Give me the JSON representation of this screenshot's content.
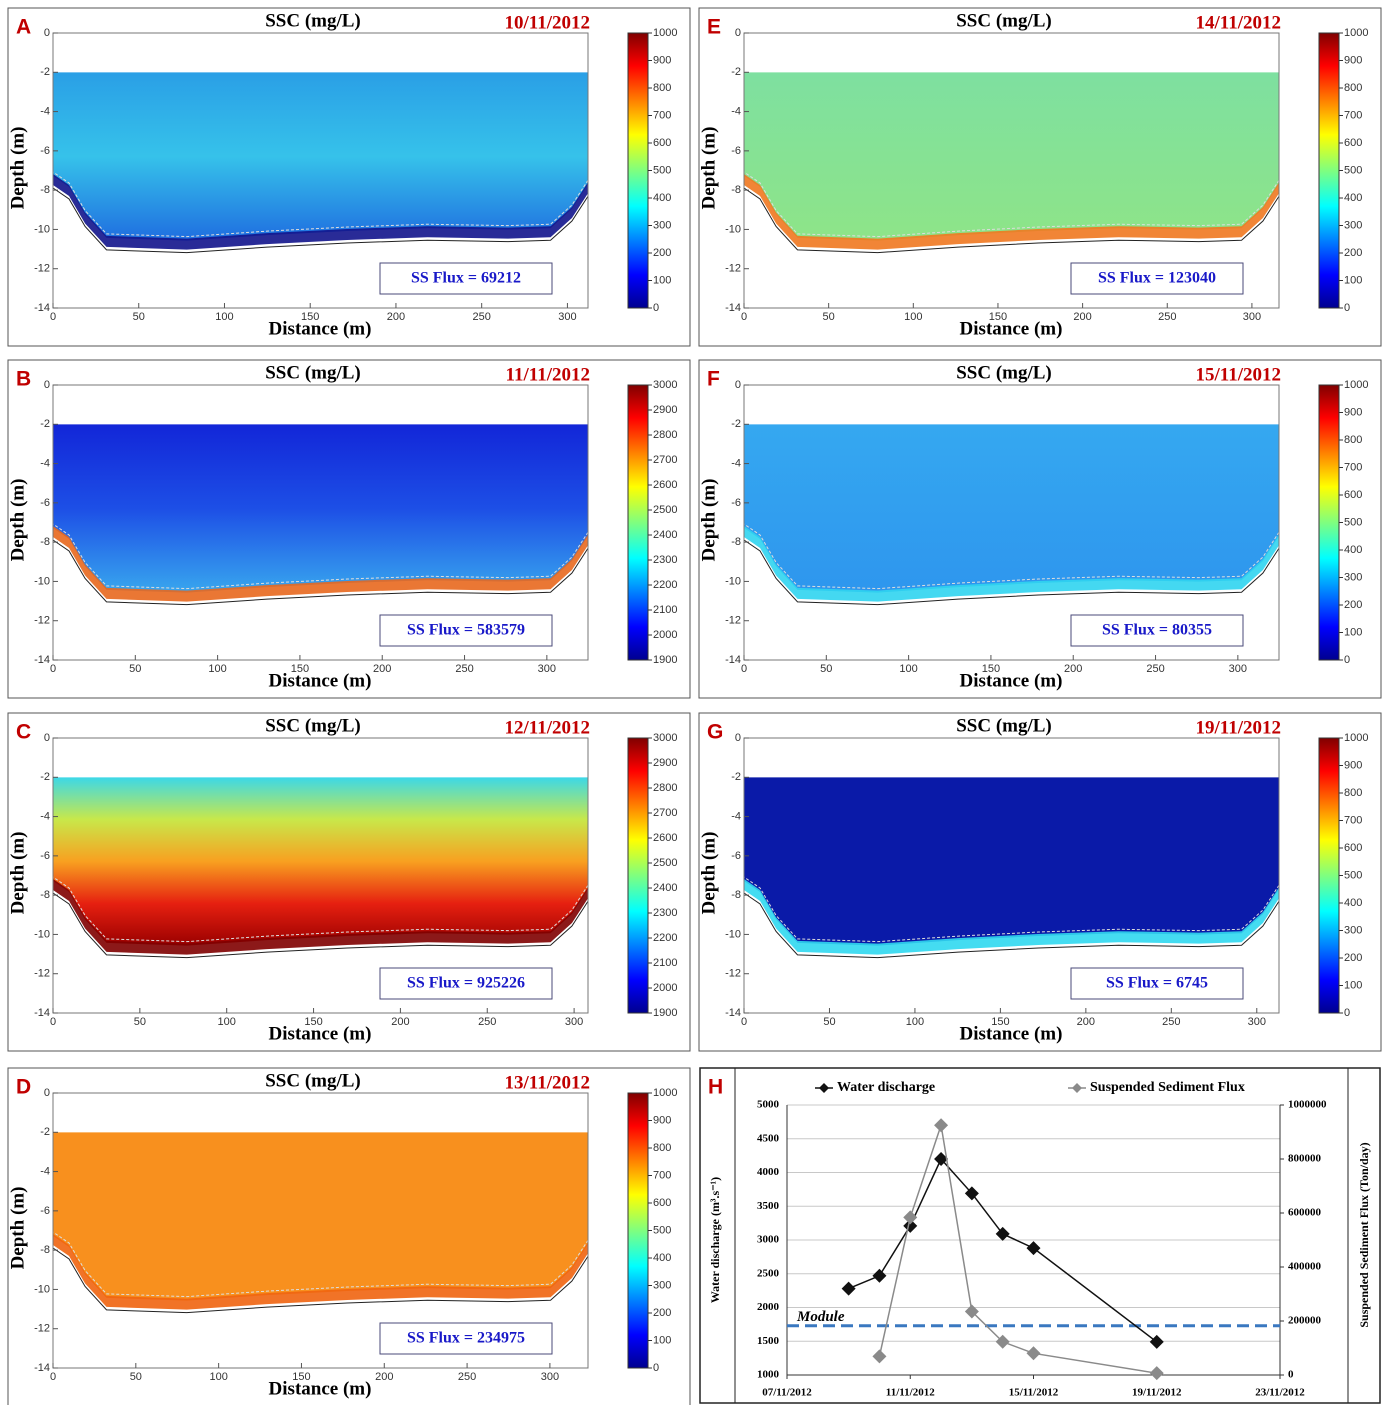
{
  "chart_data": [
    {
      "type": "heatmap",
      "panel": "A",
      "title": "SSC (mg/L)",
      "date": "10/11/2012",
      "xlabel": "Distance (m)",
      "ylabel": "Depth (m)",
      "xlim": [
        0,
        312
      ],
      "xticks": [
        0,
        50,
        100,
        150,
        200,
        250,
        300
      ],
      "ylim": [
        -14,
        0
      ],
      "yticks": [
        -14,
        -12,
        -10,
        -8,
        -6,
        -4,
        -2,
        0
      ],
      "clim": [
        0,
        1000
      ],
      "cticks": [
        0,
        100,
        200,
        300,
        400,
        500,
        600,
        700,
        800,
        900,
        1000
      ],
      "annotation": "SS Flux = 69212",
      "field_colors": [
        "#2a9fe6",
        "#36c2ea",
        "#1f6ee0"
      ],
      "bed_color": "#12148c"
    },
    {
      "type": "heatmap",
      "panel": "B",
      "title": "SSC (mg/L)",
      "date": "11/11/2012",
      "xlabel": "Distance (m)",
      "ylabel": "Depth (m)",
      "xlim": [
        0,
        325
      ],
      "xticks": [
        0,
        50,
        100,
        150,
        200,
        250,
        300
      ],
      "ylim": [
        -14,
        0
      ],
      "yticks": [
        -14,
        -12,
        -10,
        -8,
        -6,
        -4,
        -2,
        0
      ],
      "clim": [
        1900,
        3000
      ],
      "cticks": [
        1900,
        2000,
        2100,
        2200,
        2300,
        2400,
        2500,
        2600,
        2700,
        2800,
        2900,
        3000
      ],
      "annotation": "SS Flux = 583579",
      "field_colors": [
        "#1226d8",
        "#1d4fe6",
        "#38a6ee"
      ],
      "bed_color": "#e8681e"
    },
    {
      "type": "heatmap",
      "panel": "C",
      "title": "SSC (mg/L)",
      "date": "12/11/2012",
      "xlabel": "Distance (m)",
      "ylabel": "Depth (m)",
      "xlim": [
        0,
        308
      ],
      "xticks": [
        0,
        50,
        100,
        150,
        200,
        250,
        300
      ],
      "ylim": [
        -14,
        0
      ],
      "yticks": [
        -14,
        -12,
        -10,
        -8,
        -6,
        -4,
        -2,
        0
      ],
      "clim": [
        1900,
        3000
      ],
      "cticks": [
        1900,
        2000,
        2100,
        2200,
        2300,
        2400,
        2500,
        2600,
        2700,
        2800,
        2900,
        3000
      ],
      "annotation": "SS Flux = 925226",
      "field_colors": [
        "#3cd8e8",
        "#c8e84a",
        "#f8a020",
        "#e62010",
        "#9a0000"
      ],
      "bed_color": "#800000"
    },
    {
      "type": "heatmap",
      "panel": "D",
      "title": "SSC (mg/L)",
      "date": "13/11/2012",
      "xlabel": "Distance (m)",
      "ylabel": "Depth (m)",
      "xlim": [
        0,
        323
      ],
      "xticks": [
        0,
        50,
        100,
        150,
        200,
        250,
        300
      ],
      "ylim": [
        -14,
        0
      ],
      "yticks": [
        -14,
        -12,
        -10,
        -8,
        -6,
        -4,
        -2,
        0
      ],
      "clim": [
        0,
        1000
      ],
      "cticks": [
        0,
        100,
        200,
        300,
        400,
        500,
        600,
        700,
        800,
        900,
        1000
      ],
      "annotation": "SS Flux = 234975",
      "field_colors": [
        "#f8901e"
      ],
      "bed_color": "#f06410"
    },
    {
      "type": "heatmap",
      "panel": "E",
      "title": "SSC (mg/L)",
      "date": "14/11/2012",
      "xlabel": "Distance (m)",
      "ylabel": "Depth (m)",
      "xlim": [
        0,
        316
      ],
      "xticks": [
        0,
        50,
        100,
        150,
        200,
        250,
        300
      ],
      "ylim": [
        -14,
        0
      ],
      "yticks": [
        -14,
        -12,
        -10,
        -8,
        -6,
        -4,
        -2,
        0
      ],
      "clim": [
        0,
        1000
      ],
      "cticks": [
        0,
        100,
        200,
        300,
        400,
        500,
        600,
        700,
        800,
        900,
        1000
      ],
      "annotation": "SS Flux = 123040",
      "field_colors": [
        "#7ee0a0",
        "#8ee488"
      ],
      "bed_color": "#f07820"
    },
    {
      "type": "heatmap",
      "panel": "F",
      "title": "SSC (mg/L)",
      "date": "15/11/2012",
      "xlabel": "Distance (m)",
      "ylabel": "Depth (m)",
      "xlim": [
        0,
        325
      ],
      "xticks": [
        0,
        50,
        100,
        150,
        200,
        250,
        300
      ],
      "ylim": [
        -14,
        0
      ],
      "yticks": [
        -14,
        -12,
        -10,
        -8,
        -6,
        -4,
        -2,
        0
      ],
      "clim": [
        0,
        1000
      ],
      "cticks": [
        0,
        100,
        200,
        300,
        400,
        500,
        600,
        700,
        800,
        900,
        1000
      ],
      "annotation": "SS Flux = 80355",
      "field_colors": [
        "#35a8f0",
        "#2e96ee"
      ],
      "bed_color": "#30d4f0"
    },
    {
      "type": "heatmap",
      "panel": "G",
      "title": "SSC (mg/L)",
      "date": "19/11/2012",
      "xlabel": "Distance (m)",
      "ylabel": "Depth (m)",
      "xlim": [
        0,
        313
      ],
      "xticks": [
        0,
        50,
        100,
        150,
        200,
        250,
        300
      ],
      "ylim": [
        -14,
        0
      ],
      "yticks": [
        -14,
        -12,
        -10,
        -8,
        -6,
        -4,
        -2,
        0
      ],
      "clim": [
        0,
        1000
      ],
      "cticks": [
        0,
        100,
        200,
        300,
        400,
        500,
        600,
        700,
        800,
        900,
        1000
      ],
      "annotation": "SS Flux = 6745",
      "field_colors": [
        "#0a1aa8"
      ],
      "bed_color": "#30d8f0"
    },
    {
      "type": "line",
      "panel": "H",
      "ylabel": "Water discharge (m³.s⁻¹)",
      "y2label": "Suspended Sediment Flux (Ton/day)",
      "xlim": [
        "07/11/2012",
        "23/11/2012"
      ],
      "xticks": [
        "07/11/2012",
        "11/11/2012",
        "15/11/2012",
        "19/11/2012",
        "23/11/2012"
      ],
      "ylim": [
        1000,
        5000
      ],
      "yticks": [
        1000,
        1500,
        2000,
        2500,
        3000,
        3500,
        4000,
        4500,
        5000
      ],
      "y2lim": [
        0,
        1000000
      ],
      "y2ticks": [
        0,
        200000,
        400000,
        600000,
        800000,
        1000000
      ],
      "grid": true,
      "series": [
        {
          "name": "Water discharge",
          "color": "#111111",
          "axis": "y",
          "x": [
            "09/11/2012",
            "10/11/2012",
            "11/11/2012",
            "12/11/2012",
            "13/11/2012",
            "14/11/2012",
            "15/11/2012",
            "19/11/2012"
          ],
          "values": [
            2280,
            2470,
            3210,
            4200,
            3690,
            3090,
            2880,
            1490
          ]
        },
        {
          "name": "Suspended Sediment Flux",
          "color": "#8a8a8a",
          "axis": "y2",
          "x": [
            "10/11/2012",
            "11/11/2012",
            "12/11/2012",
            "13/11/2012",
            "14/11/2012",
            "15/11/2012",
            "19/11/2012"
          ],
          "values": [
            69212,
            583579,
            925226,
            234975,
            123040,
            80355,
            6745
          ]
        }
      ],
      "reference": {
        "label": "Module",
        "value": 1730,
        "color": "#3a78c0"
      }
    }
  ]
}
